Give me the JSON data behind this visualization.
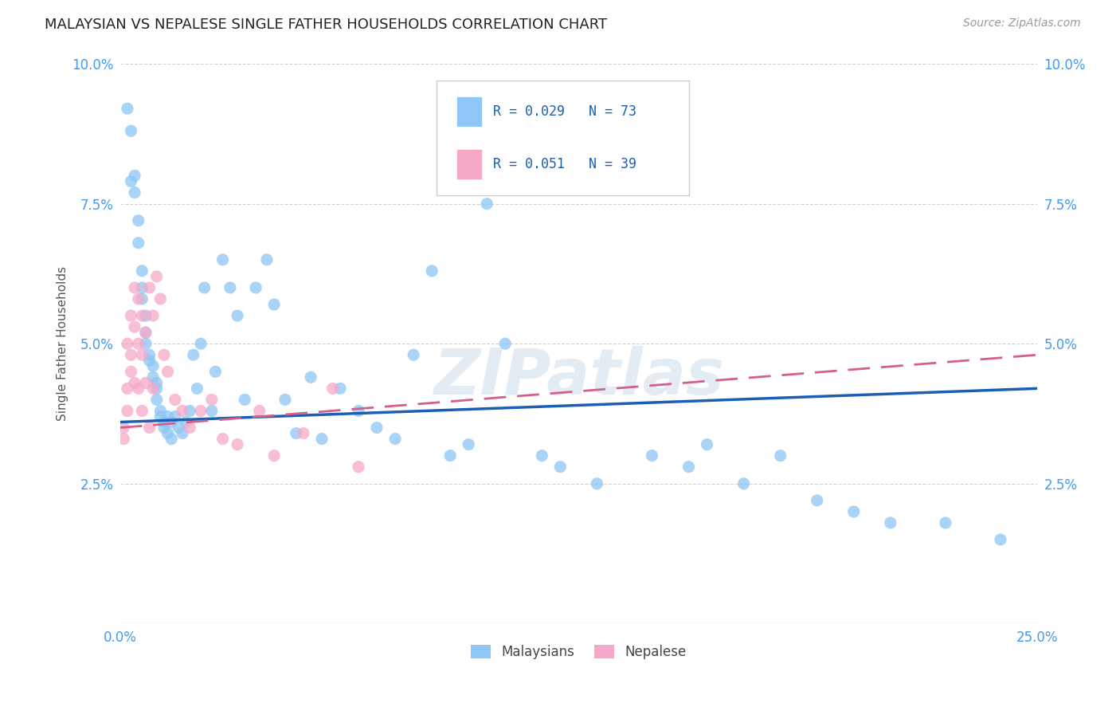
{
  "title": "MALAYSIAN VS NEPALESE SINGLE FATHER HOUSEHOLDS CORRELATION CHART",
  "source": "Source: ZipAtlas.com",
  "ylabel": "Single Father Households",
  "xmin": 0.0,
  "xmax": 0.25,
  "ymin": 0.0,
  "ymax": 0.1,
  "malaysian_color": "#8ec6f5",
  "nepalese_color": "#f5a8c8",
  "malaysian_line_color": "#1a5fb4",
  "nepalese_line_color": "#d45f8a",
  "watermark_color": "#c8d8e8",
  "malaysian_x": [
    0.002,
    0.003,
    0.003,
    0.004,
    0.004,
    0.005,
    0.005,
    0.006,
    0.006,
    0.006,
    0.007,
    0.007,
    0.007,
    0.008,
    0.008,
    0.009,
    0.009,
    0.01,
    0.01,
    0.01,
    0.011,
    0.011,
    0.012,
    0.012,
    0.013,
    0.013,
    0.014,
    0.014,
    0.015,
    0.016,
    0.017,
    0.018,
    0.019,
    0.02,
    0.021,
    0.022,
    0.023,
    0.025,
    0.026,
    0.028,
    0.03,
    0.032,
    0.034,
    0.037,
    0.04,
    0.042,
    0.045,
    0.048,
    0.052,
    0.055,
    0.06,
    0.065,
    0.07,
    0.075,
    0.08,
    0.085,
    0.09,
    0.095,
    0.1,
    0.105,
    0.115,
    0.12,
    0.13,
    0.145,
    0.155,
    0.16,
    0.17,
    0.18,
    0.19,
    0.2,
    0.21,
    0.225,
    0.24
  ],
  "malaysian_y": [
    0.092,
    0.088,
    0.079,
    0.08,
    0.077,
    0.072,
    0.068,
    0.063,
    0.06,
    0.058,
    0.055,
    0.052,
    0.05,
    0.048,
    0.047,
    0.046,
    0.044,
    0.043,
    0.042,
    0.04,
    0.038,
    0.037,
    0.036,
    0.035,
    0.037,
    0.034,
    0.036,
    0.033,
    0.037,
    0.035,
    0.034,
    0.036,
    0.038,
    0.048,
    0.042,
    0.05,
    0.06,
    0.038,
    0.045,
    0.065,
    0.06,
    0.055,
    0.04,
    0.06,
    0.065,
    0.057,
    0.04,
    0.034,
    0.044,
    0.033,
    0.042,
    0.038,
    0.035,
    0.033,
    0.048,
    0.063,
    0.03,
    0.032,
    0.075,
    0.05,
    0.03,
    0.028,
    0.025,
    0.03,
    0.028,
    0.032,
    0.025,
    0.03,
    0.022,
    0.02,
    0.018,
    0.018,
    0.015
  ],
  "nepalese_x": [
    0.001,
    0.001,
    0.002,
    0.002,
    0.002,
    0.003,
    0.003,
    0.003,
    0.004,
    0.004,
    0.004,
    0.005,
    0.005,
    0.005,
    0.006,
    0.006,
    0.006,
    0.007,
    0.007,
    0.008,
    0.008,
    0.009,
    0.009,
    0.01,
    0.011,
    0.012,
    0.013,
    0.015,
    0.017,
    0.019,
    0.022,
    0.025,
    0.028,
    0.032,
    0.038,
    0.042,
    0.05,
    0.058,
    0.065
  ],
  "nepalese_y": [
    0.035,
    0.033,
    0.042,
    0.038,
    0.05,
    0.048,
    0.045,
    0.055,
    0.043,
    0.06,
    0.053,
    0.058,
    0.05,
    0.042,
    0.055,
    0.048,
    0.038,
    0.052,
    0.043,
    0.06,
    0.035,
    0.055,
    0.042,
    0.062,
    0.058,
    0.048,
    0.045,
    0.04,
    0.038,
    0.035,
    0.038,
    0.04,
    0.033,
    0.032,
    0.038,
    0.03,
    0.034,
    0.042,
    0.028
  ],
  "mal_line_x0": 0.0,
  "mal_line_x1": 0.25,
  "mal_line_y0": 0.036,
  "mal_line_y1": 0.042,
  "nep_line_x0": 0.0,
  "nep_line_x1": 0.25,
  "nep_line_y0": 0.035,
  "nep_line_y1": 0.048
}
